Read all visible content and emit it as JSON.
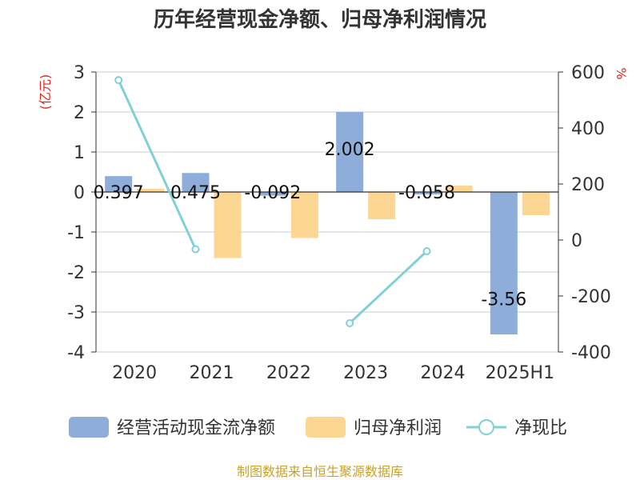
{
  "chart_data": {
    "type": "bar",
    "title": "历年经营现金净额、归母净利润情况",
    "categories": [
      "2020",
      "2021",
      "2022",
      "2023",
      "2024",
      "2025H1"
    ],
    "series": [
      {
        "name": "经营活动现金流净额",
        "kind": "bar",
        "axis": "left",
        "color": "#8eadd9",
        "values": [
          0.397,
          0.475,
          -0.092,
          2.002,
          -0.058,
          -3.56
        ],
        "labels": [
          "0.397",
          "0.475",
          "-0.092",
          "2.002",
          "-0.058",
          "-3.56"
        ]
      },
      {
        "name": "归母净利润",
        "kind": "bar",
        "axis": "left",
        "color": "#fdd693",
        "values": [
          0.08,
          -1.65,
          -1.15,
          -0.68,
          0.16,
          -0.58
        ]
      },
      {
        "name": "净现比",
        "kind": "line",
        "axis": "right",
        "color": "#7fd1d6",
        "values": [
          571,
          -33,
          null,
          -297,
          -40,
          null
        ]
      }
    ],
    "y_left": {
      "label": "(亿元)",
      "min": -4,
      "max": 3,
      "ticks": [
        "3",
        "2",
        "1",
        "0",
        "-1",
        "-2",
        "-3",
        "-4"
      ]
    },
    "y_right": {
      "label": "%",
      "min": -400,
      "max": 600,
      "ticks": [
        "600",
        "400",
        "200",
        "0",
        "-200",
        "-400"
      ]
    },
    "grid": true,
    "legend_position": "bottom"
  },
  "source": "制图数据来自恒生聚源数据库"
}
